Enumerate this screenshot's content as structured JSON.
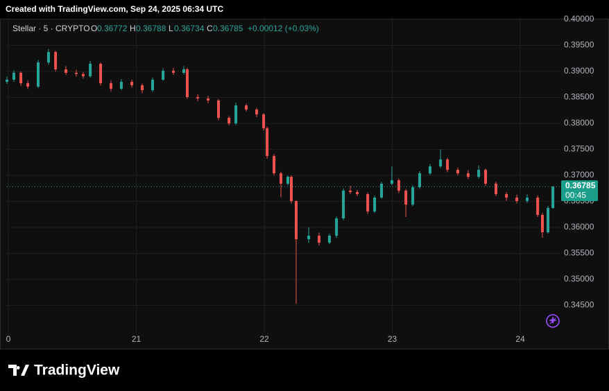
{
  "header": {
    "text": "Created with TradingView.com, Sep 24, 2025 06:34 UTC"
  },
  "chart_data": {
    "type": "candlestick",
    "legend": {
      "symbol": "Stellar · 5 · CRYPTO",
      "o_label": "O",
      "open": 0.36772,
      "h_label": "H",
      "high": 0.36788,
      "l_label": "L",
      "low": 0.36734,
      "c_label": "C",
      "close": 0.36785,
      "change": "+0.00012 (+0.03%)"
    },
    "x": [
      19.989,
      20.043,
      20.098,
      20.152,
      20.233,
      20.314,
      20.369,
      20.45,
      20.531,
      20.585,
      20.64,
      20.721,
      20.802,
      20.883,
      20.965,
      21.046,
      21.127,
      21.209,
      21.29,
      21.371,
      21.398,
      21.48,
      21.561,
      21.642,
      21.724,
      21.778,
      21.859,
      21.94,
      21.995,
      22.022,
      22.076,
      22.13,
      22.184,
      22.211,
      22.249,
      22.347,
      22.428,
      22.509,
      22.564,
      22.618,
      22.672,
      22.726,
      22.808,
      22.862,
      22.916,
      22.997,
      23.051,
      23.106,
      23.16,
      23.214,
      23.295,
      23.377,
      23.431,
      23.512,
      23.593,
      23.675,
      23.729,
      23.81,
      23.892,
      23.973,
      24.054,
      24.136,
      24.173,
      24.217,
      24.255
    ],
    "open": [
      0.388,
      0.3884,
      0.38973,
      0.38773,
      0.38707,
      0.39173,
      0.39373,
      0.3904,
      0.38973,
      0.3895,
      0.38907,
      0.39147,
      0.38773,
      0.38667,
      0.388,
      0.38733,
      0.3864,
      0.3884,
      0.39013,
      0.38973,
      0.3904,
      0.38507,
      0.3848,
      0.3844,
      0.38107,
      0.38,
      0.38347,
      0.38267,
      0.38173,
      0.37907,
      0.37373,
      0.3704,
      0.3684,
      0.36973,
      0.36507,
      0.35773,
      0.3584,
      0.35707,
      0.3584,
      0.36173,
      0.36707,
      0.3668,
      0.3664,
      0.36307,
      0.36573,
      0.3684,
      0.36907,
      0.36707,
      0.3644,
      0.36773,
      0.3704,
      0.37173,
      0.37307,
      0.37107,
      0.3704,
      0.36973,
      0.37107,
      0.3684,
      0.3664,
      0.36573,
      0.36507,
      0.36573,
      0.3624,
      0.35907,
      0.36373
    ],
    "high": [
      0.389,
      0.3902,
      0.39,
      0.3882,
      0.3922,
      0.3943,
      0.394,
      0.391,
      0.3903,
      0.3899,
      0.392,
      0.3917,
      0.3882,
      0.3885,
      0.3884,
      0.3877,
      0.3888,
      0.3906,
      0.3907,
      0.391,
      0.3907,
      0.3856,
      0.3853,
      0.3847,
      0.3814,
      0.384,
      0.3838,
      0.383,
      0.382,
      0.3794,
      0.3741,
      0.3707,
      0.37,
      0.37,
      0.3652,
      0.36,
      0.359,
      0.3588,
      0.3621,
      0.3675,
      0.368,
      0.3672,
      0.3667,
      0.3661,
      0.3688,
      0.3717,
      0.3694,
      0.3674,
      0.3681,
      0.3708,
      0.3722,
      0.375,
      0.3734,
      0.3715,
      0.371,
      0.3719,
      0.3713,
      0.3688,
      0.3668,
      0.3663,
      0.3663,
      0.3661,
      0.3628,
      0.3641,
      0.36788
    ],
    "low": [
      0.3876,
      0.388,
      0.3872,
      0.3866,
      0.3868,
      0.3913,
      0.39,
      0.3893,
      0.389,
      0.3886,
      0.3888,
      0.3873,
      0.3862,
      0.3864,
      0.3869,
      0.3858,
      0.3861,
      0.3882,
      0.3893,
      0.3894,
      0.3847,
      0.3843,
      0.3839,
      0.3806,
      0.3796,
      0.3797,
      0.3823,
      0.3812,
      0.3786,
      0.3732,
      0.37,
      0.3658,
      0.3681,
      0.3646,
      0.3453,
      0.357,
      0.3565,
      0.3568,
      0.358,
      0.3614,
      0.3664,
      0.366,
      0.3626,
      0.3628,
      0.3655,
      0.3681,
      0.3666,
      0.362,
      0.3641,
      0.3674,
      0.3701,
      0.3714,
      0.3706,
      0.37,
      0.3693,
      0.3694,
      0.368,
      0.366,
      0.3651,
      0.3646,
      0.3647,
      0.362,
      0.358,
      0.3588,
      0.3636
    ],
    "close": [
      0.3884,
      0.38973,
      0.38773,
      0.38707,
      0.39173,
      0.39373,
      0.3904,
      0.38973,
      0.3895,
      0.38907,
      0.39147,
      0.38773,
      0.38667,
      0.388,
      0.38733,
      0.3864,
      0.3884,
      0.39013,
      0.38973,
      0.3904,
      0.38507,
      0.3848,
      0.3844,
      0.38107,
      0.38,
      0.38347,
      0.38267,
      0.38173,
      0.37907,
      0.37373,
      0.3704,
      0.3684,
      0.36973,
      0.36507,
      0.35773,
      0.3584,
      0.35707,
      0.3584,
      0.36173,
      0.36707,
      0.3668,
      0.3664,
      0.36307,
      0.36573,
      0.3684,
      0.36907,
      0.36707,
      0.3644,
      0.36773,
      0.3704,
      0.37173,
      0.37307,
      0.37107,
      0.3704,
      0.36973,
      0.37107,
      0.3684,
      0.3664,
      0.36573,
      0.36507,
      0.36573,
      0.3624,
      0.35907,
      0.36373,
      0.36785
    ],
    "colors": {
      "up": "#26a69a",
      "down": "#ef5350"
    },
    "xlim": [
      19.989,
      24.314
    ],
    "xticks": [
      {
        "value": 20,
        "label": "0"
      },
      21,
      22,
      23,
      24
    ],
    "ylim": [
      0.33973,
      0.4004
    ],
    "yticks": [
      {
        "value": 0.4,
        "label": "0.40000"
      },
      {
        "value": 0.395,
        "label": "0.39500"
      },
      {
        "value": 0.39,
        "label": "0.39000"
      },
      {
        "value": 0.385,
        "label": "0.38500"
      },
      {
        "value": 0.38,
        "label": "0.38000"
      },
      {
        "value": 0.375,
        "label": "0.37500"
      },
      {
        "value": 0.37,
        "label": "0.37000"
      },
      {
        "value": 0.365,
        "label": "0.36500"
      },
      {
        "value": 0.36,
        "label": "0.36000"
      },
      {
        "value": 0.355,
        "label": "0.35500"
      },
      {
        "value": 0.35,
        "label": "0.35000"
      },
      {
        "value": 0.345,
        "label": "0.34500"
      }
    ],
    "grid": true,
    "last_price": 0.36785,
    "countdown": "00:45"
  },
  "footer": {
    "brand": "TradingView"
  }
}
